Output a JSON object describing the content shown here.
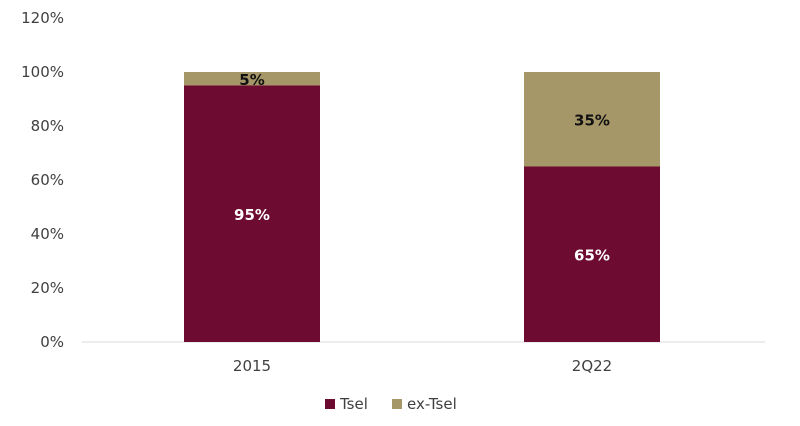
{
  "chart_data": {
    "type": "bar",
    "stacked": true,
    "categories": [
      "2015",
      "2Q22"
    ],
    "series": [
      {
        "name": "Tsel",
        "values": [
          95,
          65
        ],
        "labels": [
          "95%",
          "65%"
        ],
        "color": "#6d0b30",
        "label_color": "#ffffff"
      },
      {
        "name": "ex-Tsel",
        "values": [
          5,
          35
        ],
        "labels": [
          "5%",
          "35%"
        ],
        "color": "#a69768",
        "label_color": "#111111"
      }
    ],
    "yticks": [
      "0%",
      "20%",
      "40%",
      "60%",
      "80%",
      "100%",
      "120%"
    ],
    "ylim": [
      0,
      120
    ],
    "grid": false,
    "legend_position": "bottom"
  }
}
